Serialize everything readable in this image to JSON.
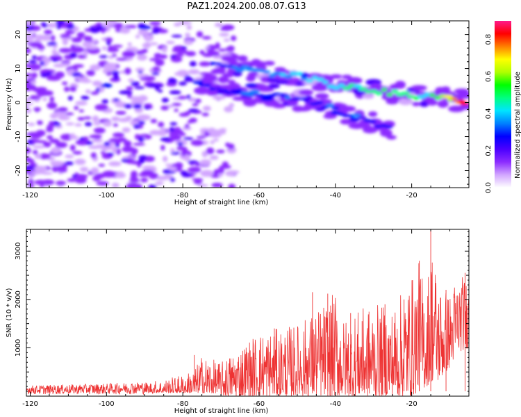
{
  "title": "PAZ1.2024.200.08.07.G13",
  "chart_data": [
    {
      "type": "heatmap",
      "title": "PAZ1.2024.200.08.07.G13",
      "xlabel": "Height of straight line (km)",
      "ylabel": "Frequency (Hz)",
      "xlim": [
        -121,
        -5
      ],
      "ylim": [
        -25,
        24
      ],
      "xticks": [
        -120,
        -100,
        -80,
        -60,
        -40,
        -20
      ],
      "yticks": [
        -20,
        -10,
        0,
        10,
        20
      ],
      "colorbar": {
        "label": "Normalized spectral amplitude",
        "range": [
          0.0,
          0.9
        ],
        "ticks": [
          0.0,
          0.2,
          0.4,
          0.6,
          0.8
        ],
        "colors": [
          "#ffffff",
          "#d2a6ff",
          "#8c2cff",
          "#4b00ff",
          "#0000ff",
          "#0080ff",
          "#00e5ff",
          "#00ff80",
          "#00ff00",
          "#b0ff00",
          "#ffff00",
          "#ff8000",
          "#ff0000",
          "#ff1a8c"
        ]
      },
      "ridges": [
        {
          "name": "main",
          "points": [
            [
              -72,
              12
            ],
            [
              -60,
              9
            ],
            [
              -50,
              8
            ],
            [
              -40,
              5
            ],
            [
              -30,
              3.5
            ],
            [
              -20,
              2
            ],
            [
              -12,
              1.5
            ],
            [
              -8,
              0.5
            ],
            [
              -5,
              0
            ]
          ]
        },
        {
          "name": "lower",
          "points": [
            [
              -75,
              5
            ],
            [
              -65,
              3
            ],
            [
              -55,
              2
            ],
            [
              -45,
              0
            ],
            [
              -38,
              -3
            ],
            [
              -32,
              -5
            ],
            [
              -25,
              -8
            ]
          ]
        }
      ]
    },
    {
      "type": "line",
      "xlabel": "Height of straight line (km)",
      "ylabel": "SNR (10 * v/v)",
      "xlim": [
        -121,
        -5
      ],
      "ylim": [
        0,
        3450
      ],
      "xticks": [
        -120,
        -100,
        -80,
        -60,
        -40,
        -20
      ],
      "yticks": [
        1000,
        2000,
        3000
      ],
      "series": [
        {
          "color": "#ee3333",
          "envelope": {
            "x": [
              -121,
              -110,
              -100,
              -90,
              -85,
              -80,
              -77,
              -75,
              -70,
              -65,
              -60,
              -55,
              -50,
              -45,
              -40,
              -38,
              -35,
              -30,
              -25,
              -20,
              -18,
              -16,
              -15,
              -13,
              -10,
              -8,
              -5
            ],
            "min": [
              0,
              0,
              0,
              0,
              0,
              0,
              0,
              0,
              0,
              0,
              0,
              0,
              0,
              0,
              0,
              0,
              0,
              0,
              0,
              0,
              100,
              200,
              300,
              300,
              600,
              900,
              1000
            ],
            "max": [
              220,
              240,
              260,
              300,
              350,
              450,
              550,
              850,
              700,
              1050,
              1350,
              1400,
              1500,
              1800,
              2150,
              1600,
              1750,
              1900,
              1850,
              2500,
              2800,
              2200,
              3400,
              2400,
              2150,
              2550,
              2450
            ]
          },
          "peaks": [
            [
              -77,
              850
            ],
            [
              -56,
              1400
            ],
            [
              -46,
              2150
            ],
            [
              -42,
              2120
            ],
            [
              -36,
              1720
            ],
            [
              -33,
              1550
            ],
            [
              -27,
              1900
            ],
            [
              -22,
              2000
            ],
            [
              -18,
              2800
            ],
            [
              -15,
              3450
            ],
            [
              -11,
              2200
            ],
            [
              -6,
              2550
            ]
          ]
        }
      ]
    }
  ]
}
